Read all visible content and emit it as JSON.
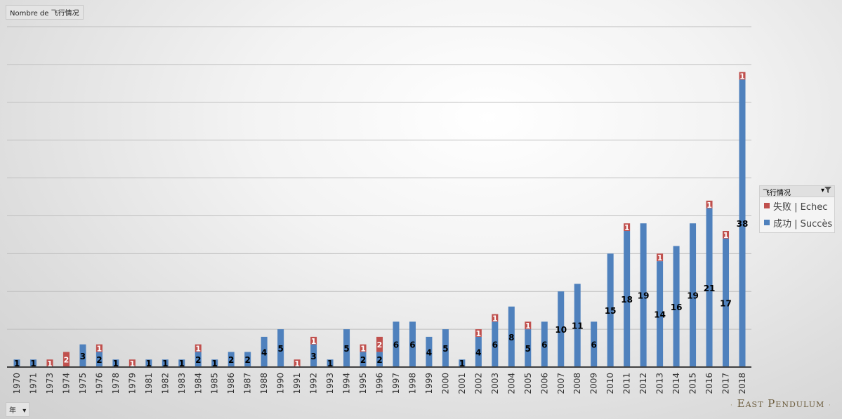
{
  "header": {
    "field_label": "Nombre de 飞行情况"
  },
  "filter_button": {
    "label": "年",
    "arrow": "▾"
  },
  "legend": {
    "title": "飞行情况",
    "filter_icon": "filter-dropdown-icon",
    "items": [
      {
        "label": "失败 | Echec",
        "color": "#c0504d"
      },
      {
        "label": "成功 | Succès",
        "color": "#4f81bd"
      }
    ]
  },
  "watermark": {
    "text": "East Pendulum",
    "dot_left": "·",
    "dot_right": "·"
  },
  "colors": {
    "success": "#4f81bd",
    "failure": "#c0504d",
    "axis": "#404040",
    "grid": "#bfbfbf"
  },
  "chart_data": {
    "type": "bar",
    "stacked": true,
    "ylim": [
      0,
      45
    ],
    "gridlines": true,
    "legend_position": "right",
    "categories": [
      "1970",
      "1971",
      "1973",
      "1974",
      "1975",
      "1976",
      "1978",
      "1979",
      "1981",
      "1982",
      "1983",
      "1984",
      "1985",
      "1986",
      "1987",
      "1988",
      "1990",
      "1991",
      "1992",
      "1993",
      "1994",
      "1995",
      "1996",
      "1997",
      "1998",
      "1999",
      "2000",
      "2001",
      "2002",
      "2003",
      "2004",
      "2005",
      "2006",
      "2007",
      "2008",
      "2009",
      "2010",
      "2011",
      "2012",
      "2013",
      "2014",
      "2015",
      "2016",
      "2017",
      "2018"
    ],
    "series": [
      {
        "name": "成功 | Succès",
        "values": [
          1,
          1,
          0,
          0,
          3,
          2,
          1,
          0,
          1,
          1,
          1,
          2,
          1,
          2,
          2,
          4,
          5,
          0,
          3,
          1,
          5,
          2,
          2,
          6,
          6,
          4,
          5,
          1,
          4,
          6,
          8,
          5,
          6,
          10,
          11,
          6,
          15,
          18,
          19,
          14,
          16,
          19,
          21,
          17,
          38
        ]
      },
      {
        "name": "失败 | Echec",
        "values": [
          0,
          0,
          1,
          2,
          0,
          1,
          0,
          1,
          0,
          0,
          0,
          1,
          0,
          0,
          0,
          0,
          0,
          1,
          1,
          0,
          0,
          1,
          2,
          0,
          0,
          0,
          0,
          0,
          1,
          1,
          0,
          1,
          0,
          0,
          0,
          0,
          0,
          1,
          0,
          1,
          0,
          0,
          1,
          1,
          1
        ]
      }
    ]
  }
}
